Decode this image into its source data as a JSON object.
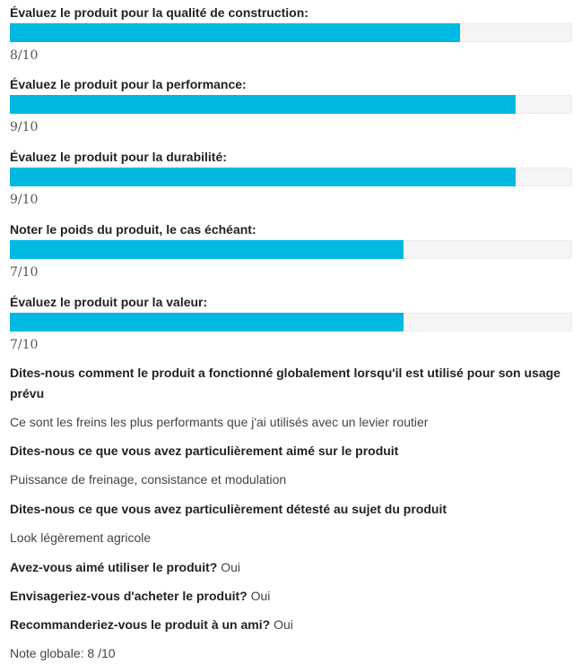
{
  "ratings": [
    {
      "question": "Évaluez le produit pour la qualité de construction:",
      "score_text": "8/10",
      "value": 0.8
    },
    {
      "question": "Évaluez le produit pour la performance:",
      "score_text": "9/10",
      "value": 0.9
    },
    {
      "question": "Évaluez le produit pour la durabilité:",
      "score_text": "9/10",
      "value": 0.9
    },
    {
      "question": "Noter le poids du produit, le cas échéant:",
      "score_text": "7/10",
      "value": 0.7
    },
    {
      "question": "Évaluez le produit pour la valeur:",
      "score_text": "7/10",
      "value": 0.7
    }
  ],
  "open_questions": [
    {
      "question": "Dites-nous comment le produit a fonctionné globalement lorsqu'il est utilisé pour son usage prévu",
      "answer": "Ce sont les freins les plus performants que j'ai utilisés avec un levier routier"
    },
    {
      "question": "Dites-nous ce que vous avez particulièrement aimé sur le produit",
      "answer": "Puissance de freinage, consistance et modulation"
    },
    {
      "question": "Dites-nous ce que vous avez particulièrement détesté au sujet du produit",
      "answer": "Look légèrement agricole"
    }
  ],
  "yes_no": [
    {
      "question": "Avez-vous aimé utiliser le produit?",
      "answer": "Oui"
    },
    {
      "question": "Envisageriez-vous d'acheter le produit?",
      "answer": "Oui"
    },
    {
      "question": "Recommanderiez-vous le produit à un ami?",
      "answer": "Oui"
    }
  ],
  "overall": "Note globale: 8 /10",
  "colors": {
    "bar_fill": "#00b9e2",
    "bar_track": "#f5f5f5"
  }
}
